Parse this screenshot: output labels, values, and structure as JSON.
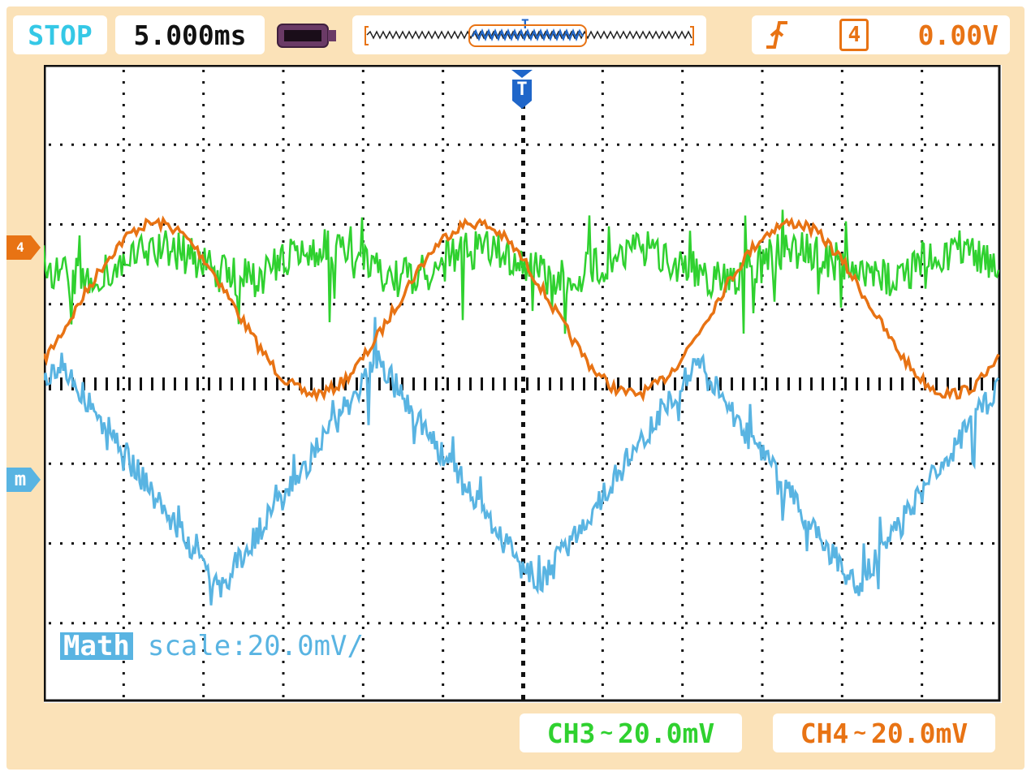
{
  "header": {
    "status": "STOP",
    "timebase": "5.000ms",
    "trigger_level": "0.00V",
    "trigger_source": "4",
    "status_color": "#35c8e6"
  },
  "screen": {
    "trigger_marker": "T",
    "channel4_marker": "4",
    "math_marker": "m",
    "math_tag": "Math",
    "math_scale": "scale:20.0mV/"
  },
  "footer": {
    "ch3_name": "CH3",
    "ch3_coupling": "~",
    "ch3_scale": "20.0mV",
    "ch4_name": "CH4",
    "ch4_coupling": "~",
    "ch4_scale": "20.0mV"
  },
  "colors": {
    "ch3": "#2fd12f",
    "ch4": "#e87314",
    "math": "#59b4e2",
    "trigger": "#1f66c9",
    "frame": "#fbe2b8"
  }
}
